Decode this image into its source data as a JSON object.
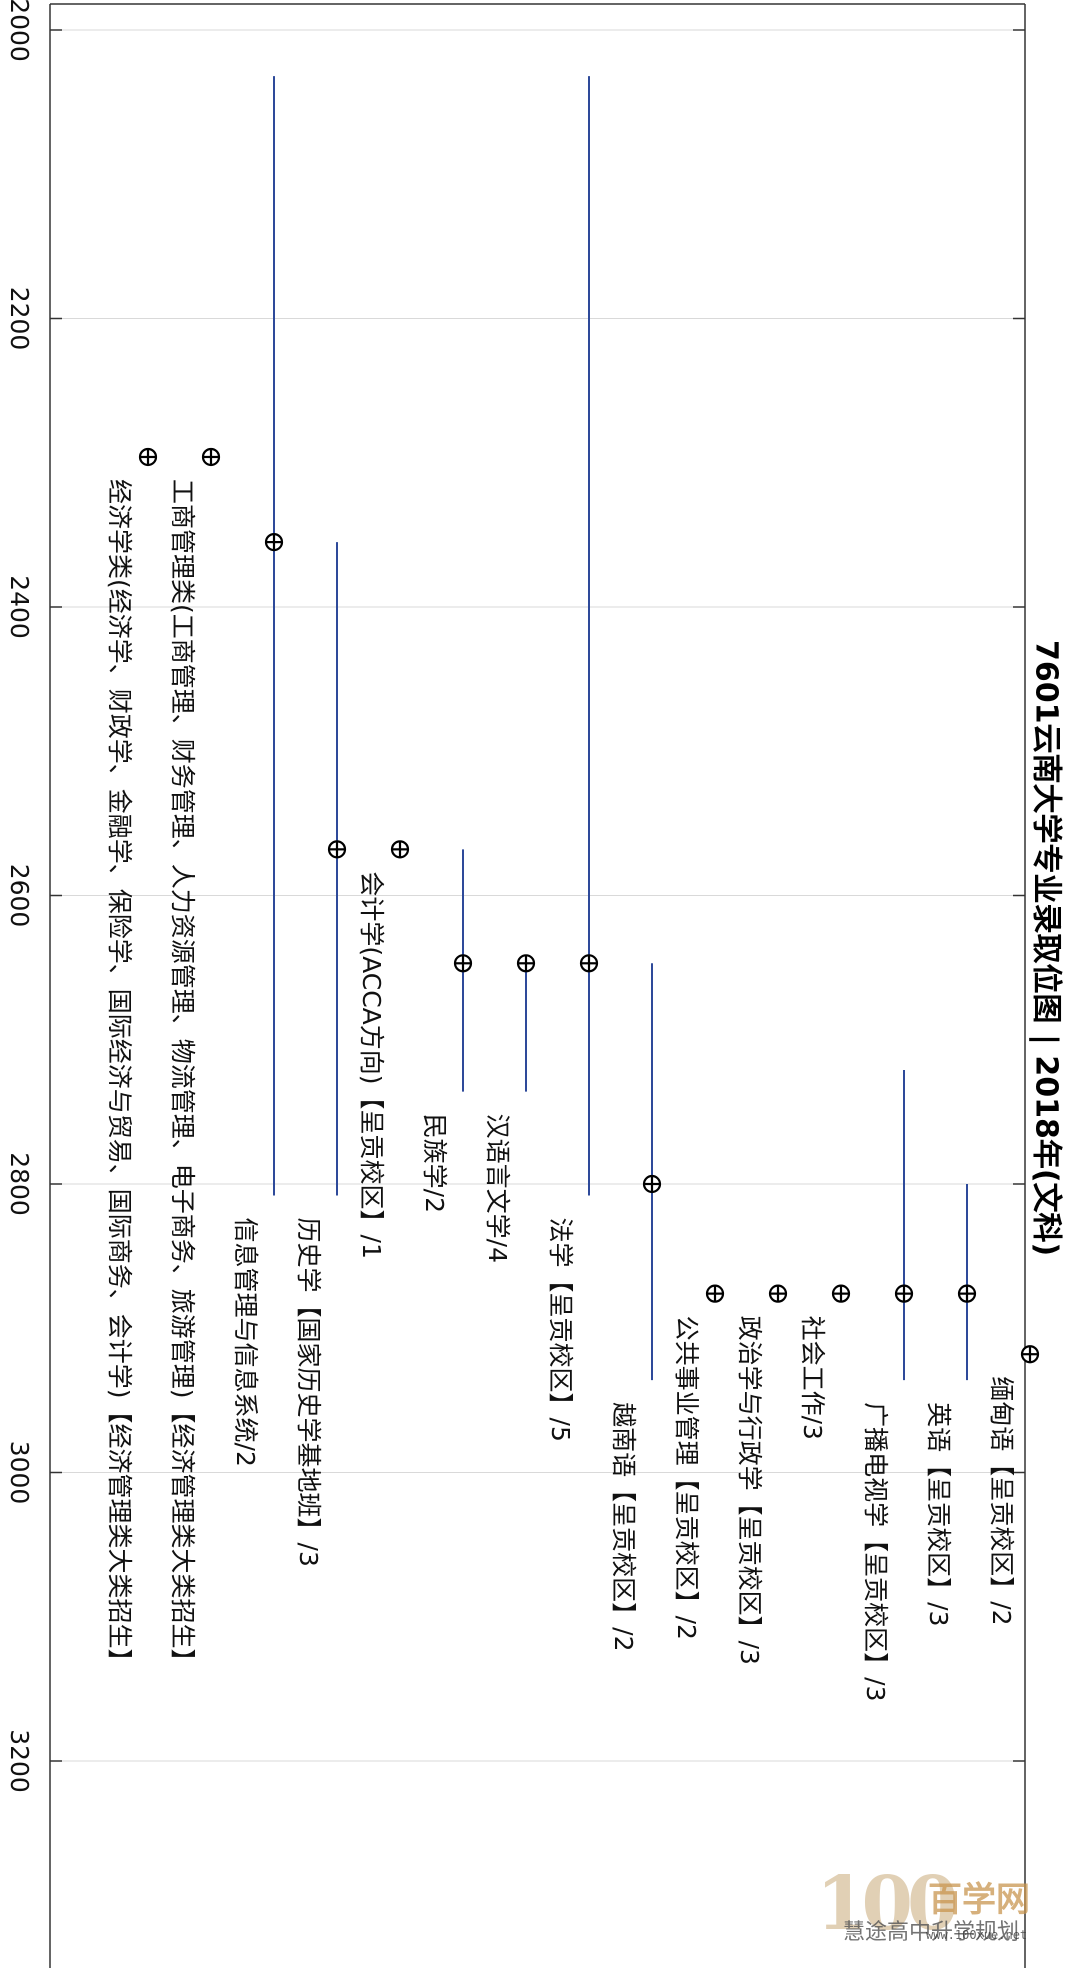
{
  "chart_data": {
    "type": "range",
    "title": "7601云南大学专业录取位图 | 2018年(文科)",
    "xlim": [
      2000,
      3300
    ],
    "x_ticks": [
      2000,
      2200,
      2400,
      2600,
      2800,
      3000,
      3200
    ],
    "grid": true,
    "series": [
      {
        "label": "缅甸语【呈贡校区】/2",
        "min": 2918,
        "max": 2918,
        "median": 2918
      },
      {
        "label": "英语【呈贡校区】/3",
        "min": 2800,
        "max": 2936,
        "median": 2876
      },
      {
        "label": "广播电视学【呈贡校区】/3",
        "min": 2721,
        "max": 2936,
        "median": 2876
      },
      {
        "label": "社会工作/3",
        "min": 2876,
        "max": 2876,
        "median": 2876
      },
      {
        "label": "政治学与行政学【呈贡校区】/3",
        "min": 2876,
        "max": 2876,
        "median": 2876
      },
      {
        "label": "公共事业管理【呈贡校区】/2",
        "min": 2876,
        "max": 2876,
        "median": 2876
      },
      {
        "label": "越南语【呈贡校区】/2",
        "min": 2647,
        "max": 2936,
        "median": 2800
      },
      {
        "label": "法学【呈贡校区】/5",
        "min": 2032,
        "max": 2808,
        "median": 2647
      },
      {
        "label": "汉语言文学/4",
        "min": 2647,
        "max": 2736,
        "median": 2647
      },
      {
        "label": "民族学/2",
        "min": 2568,
        "max": 2736,
        "median": 2647
      },
      {
        "label": "会计学(ACCA方向)【呈贡校区】/1",
        "min": 2568,
        "max": 2568,
        "median": 2568
      },
      {
        "label": "历史学【国家历史学基地班】/3",
        "min": 2355,
        "max": 2808,
        "median": 2568
      },
      {
        "label": "信息管理与信息系统/2",
        "min": 2032,
        "max": 2808,
        "median": 2355
      },
      {
        "label": "工商管理类(工商管理、财务管理、人力资源管理、物流管理、电子商务、旅游管理)【经济管理类大类招生】",
        "min": 2296,
        "max": 2296,
        "median": 2296
      },
      {
        "label": "经济学类(经济学、财政学、金融学、保险学、国际经济与贸易、国际商务、会计学)【经济管理类大类招生】",
        "min": 2296,
        "max": 2296,
        "median": 2296
      }
    ]
  },
  "watermark": {
    "logo_number": "100",
    "logo_text": "百学网",
    "brand": "慧途高中升学规划",
    "url": "www.100xue.net"
  }
}
